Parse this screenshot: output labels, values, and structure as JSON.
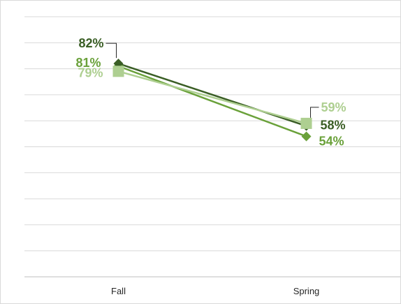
{
  "chart_data": {
    "type": "line",
    "title": "",
    "xlabel": "",
    "ylabel": "",
    "categories": [
      "Fall",
      "Spring"
    ],
    "ylim": [
      0,
      100
    ],
    "grid": true,
    "legend": "none",
    "series": [
      {
        "values": [
          82,
          58
        ],
        "labels": [
          "82%",
          "58%"
        ],
        "color": "#3a5e25",
        "marker": "diamond"
      },
      {
        "values": [
          81,
          54
        ],
        "labels": [
          "81%",
          "54%"
        ],
        "color": "#6aa13a",
        "marker": "diamond"
      },
      {
        "values": [
          79,
          59
        ],
        "labels": [
          "79%",
          "59%"
        ],
        "color": "#aecf91",
        "marker": "square"
      }
    ]
  }
}
